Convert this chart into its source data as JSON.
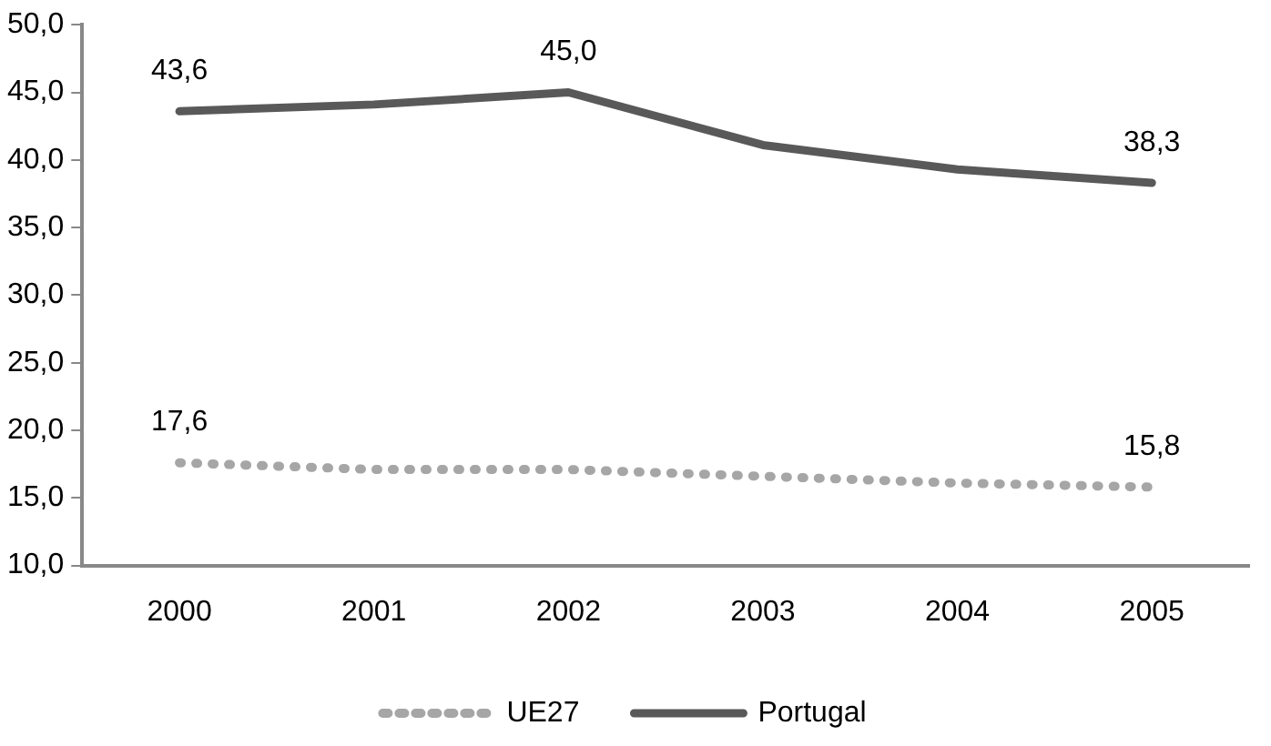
{
  "chart_data": {
    "type": "line",
    "categories": [
      "2000",
      "2001",
      "2002",
      "2003",
      "2004",
      "2005"
    ],
    "series": [
      {
        "name": "UE27",
        "color": "#a6a6a6",
        "line_style": "dotted",
        "values": [
          17.6,
          17.1,
          17.1,
          16.6,
          16.1,
          15.8
        ],
        "value_labels": [
          "17,6",
          null,
          null,
          null,
          null,
          "15,8"
        ]
      },
      {
        "name": "Portugal",
        "color": "#595959",
        "line_style": "solid",
        "values": [
          43.6,
          44.1,
          45.0,
          41.1,
          39.3,
          38.3
        ],
        "value_labels": [
          "43,6",
          null,
          "45,0",
          null,
          null,
          "38,3"
        ]
      }
    ],
    "ylim": [
      10,
      50
    ],
    "yticks": [
      {
        "value": 10,
        "label": "10,0"
      },
      {
        "value": 15,
        "label": "15,0"
      },
      {
        "value": 20,
        "label": "20,0"
      },
      {
        "value": 25,
        "label": "25,0"
      },
      {
        "value": 30,
        "label": "30,0"
      },
      {
        "value": 35,
        "label": "35,0"
      },
      {
        "value": 40,
        "label": "40,0"
      },
      {
        "value": 45,
        "label": "45,0"
      },
      {
        "value": 50,
        "label": "50,0"
      }
    ],
    "grid": false,
    "legend": "bottom",
    "marker": "none"
  }
}
